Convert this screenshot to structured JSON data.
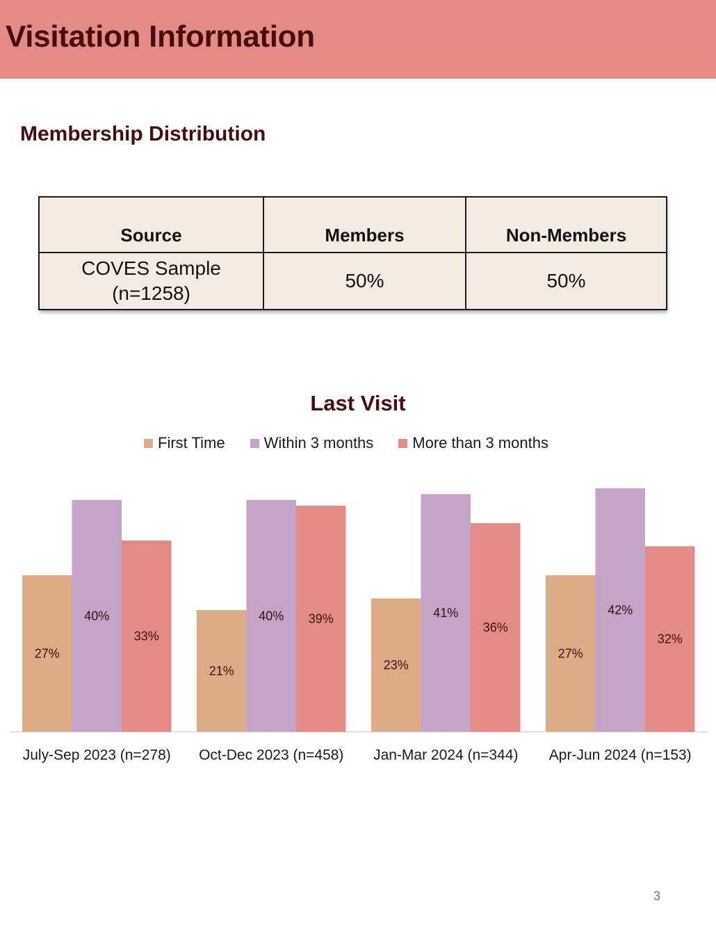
{
  "header": {
    "title": "Visitation Information"
  },
  "membership": {
    "title": "Membership Distribution",
    "columns": [
      "Source",
      "Members",
      "Non-Members"
    ],
    "row": {
      "source_line1": "COVES Sample",
      "source_line2": "(n=1258)",
      "members": "50%",
      "non_members": "50%"
    }
  },
  "colors": {
    "header_bg": "#e58b86",
    "title_text": "#4a0d0f",
    "table_bg": "#f4ebe2",
    "first_time": "#ddac86",
    "within_3": "#c5a3c6",
    "more_3": "#e58b86"
  },
  "chart_data": {
    "type": "bar",
    "title": "Last Visit",
    "categories": [
      "July-Sep 2023 (n=278)",
      "Oct-Dec 2023 (n=458)",
      "Jan-Mar 2024 (n=344)",
      "Apr-Jun 2024 (n=153)"
    ],
    "series": [
      {
        "name": "First Time",
        "values": [
          27,
          21,
          23,
          27
        ],
        "labels": [
          "27%",
          "21%",
          "23%",
          "27%"
        ],
        "color": "#ddac86"
      },
      {
        "name": "Within 3 months",
        "values": [
          40,
          40,
          41,
          42
        ],
        "labels": [
          "40%",
          "40%",
          "41%",
          "42%"
        ],
        "color": "#c5a3c6"
      },
      {
        "name": "More than 3 months",
        "values": [
          33,
          39,
          36,
          32
        ],
        "labels": [
          "33%",
          "39%",
          "36%",
          "32%"
        ],
        "color": "#e58b86"
      }
    ],
    "ylim": [
      0,
      42
    ],
    "legend": "top",
    "grid": false,
    "xlabel": "",
    "ylabel": ""
  },
  "page": {
    "number": "3"
  }
}
